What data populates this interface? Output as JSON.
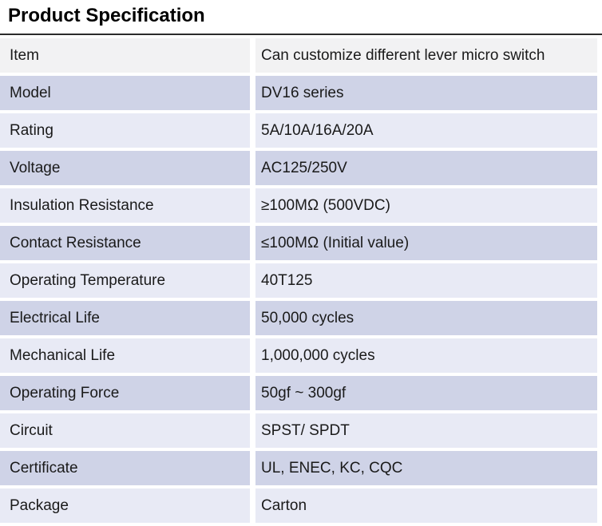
{
  "page": {
    "title": "Product Specification"
  },
  "colors": {
    "header_row_bg": "#f2f2f3",
    "row_dark_bg": "#cfd3e7",
    "row_light_bg": "#e8eaf5",
    "title_rule": "#2b2b2b",
    "text": "#1a1a1a"
  },
  "table": {
    "rows": [
      {
        "item": "Item",
        "value": "Can customize different lever micro switch"
      },
      {
        "item": "Model",
        "value": "DV16 series"
      },
      {
        "item": "Rating",
        "value": "5A/10A/16A/20A"
      },
      {
        "item": "Voltage",
        "value": "AC125/250V"
      },
      {
        "item": "Insulation Resistance",
        "value": "≥100MΩ (500VDC)"
      },
      {
        "item": "Contact Resistance",
        "value": "≤100MΩ (Initial value)"
      },
      {
        "item": "Operating Temperature",
        "value": "40T125"
      },
      {
        "item": "Electrical Life",
        "value": "50,000 cycles"
      },
      {
        "item": "Mechanical Life",
        "value": "1,000,000 cycles"
      },
      {
        "item": "Operating Force",
        "value": "50gf ~  300gf"
      },
      {
        "item": "Circuit",
        "value": "SPST/ SPDT"
      },
      {
        "item": "Certificate",
        "value": "UL, ENEC, KC, CQC"
      },
      {
        "item": "Package",
        "value": "Carton"
      }
    ]
  }
}
